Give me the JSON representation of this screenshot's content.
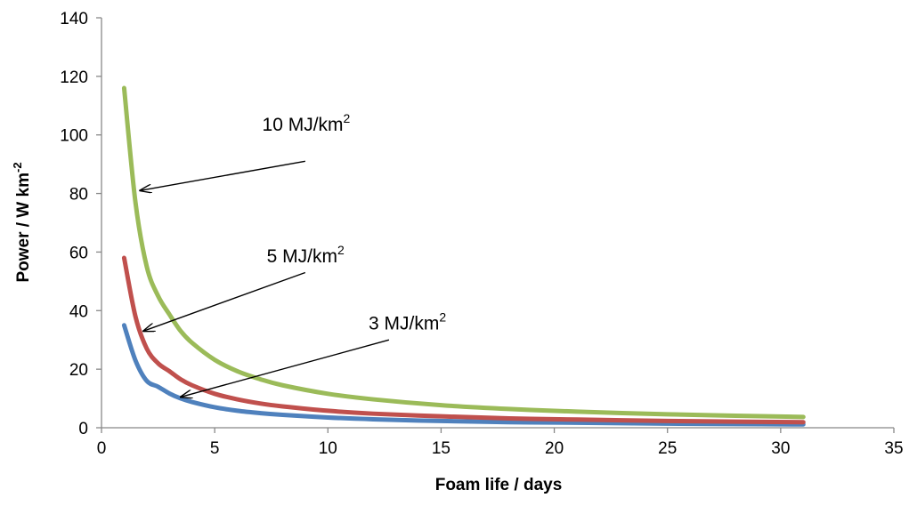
{
  "chart_data": {
    "type": "line",
    "title": "",
    "xlabel": "Foam life / days",
    "ylabel": {
      "text": "Power  /  W km",
      "superscript": "-2"
    },
    "xlim": [
      0,
      35
    ],
    "ylim": [
      0,
      140
    ],
    "x_ticks": [
      0,
      5,
      10,
      15,
      20,
      25,
      30,
      35
    ],
    "y_ticks": [
      0,
      20,
      40,
      60,
      80,
      100,
      120,
      140
    ],
    "grid": false,
    "legend": "none",
    "series": [
      {
        "color": "#4f81bd",
        "x": [
          1,
          1.5,
          2,
          2.5,
          3,
          3.5,
          4,
          5,
          6,
          7,
          8,
          10,
          12,
          15,
          18,
          21,
          25,
          28,
          31
        ],
        "y": [
          35,
          23,
          16,
          14,
          11.7,
          10,
          8.8,
          7,
          5.8,
          5,
          4.4,
          3.5,
          2.9,
          2.3,
          1.9,
          1.7,
          1.4,
          1.25,
          1.13
        ]
      },
      {
        "color": "#c0504d",
        "x": [
          1,
          1.5,
          2,
          2.5,
          3,
          3.5,
          4,
          5,
          6,
          7,
          8,
          10,
          12,
          15,
          18,
          21,
          25,
          28,
          31
        ],
        "y": [
          58,
          38,
          27,
          22,
          19.3,
          16.5,
          14.5,
          11.6,
          9.7,
          8.3,
          7.3,
          5.8,
          4.8,
          3.9,
          3.2,
          2.8,
          2.3,
          2.1,
          1.9
        ]
      },
      {
        "color": "#9bbb59",
        "x": [
          1,
          1.5,
          2,
          2.5,
          3,
          3.5,
          4,
          5,
          6,
          7,
          8,
          10,
          12,
          15,
          18,
          21,
          25,
          28,
          31
        ],
        "y": [
          116,
          77,
          55,
          45,
          38.7,
          33,
          29,
          23.2,
          19.3,
          16.6,
          14.5,
          11.6,
          9.7,
          7.7,
          6.4,
          5.5,
          4.6,
          4.1,
          3.7
        ]
      }
    ],
    "annotations": [
      {
        "text": "10 MJ/km",
        "superscript": "2",
        "text_anchor": [
          7.1,
          101.5
        ],
        "arrow_from": [
          9,
          91
        ],
        "arrow_to": [
          1.7,
          81
        ]
      },
      {
        "text": "5 MJ/km",
        "superscript": "2",
        "text_anchor": [
          7.3,
          56.5
        ],
        "arrow_from": [
          9,
          53
        ],
        "arrow_to": [
          1.85,
          33
        ]
      },
      {
        "text": "3 MJ/km",
        "superscript": "2",
        "text_anchor": [
          11.8,
          33.5
        ],
        "arrow_from": [
          12.7,
          30
        ],
        "arrow_to": [
          3.5,
          10.5
        ]
      }
    ]
  }
}
